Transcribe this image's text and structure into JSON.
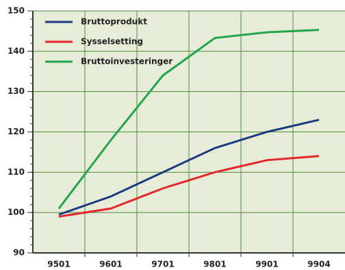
{
  "chart_data": {
    "type": "line",
    "categories": [
      "9501",
      "9601",
      "9701",
      "9801",
      "9901",
      "9904"
    ],
    "series": [
      {
        "name": "Bruttoprodukt",
        "color": "#1b3a7e",
        "values": [
          99.5,
          104,
          110,
          116,
          120,
          123
        ]
      },
      {
        "name": "Sysselsetting",
        "color": "#e5252a",
        "values": [
          99,
          101,
          106,
          110,
          113,
          114
        ]
      },
      {
        "name": "Bruttoinvesteringer",
        "color": "#21a54a",
        "values": [
          101,
          118,
          134,
          143.3,
          144.7,
          145.3
        ]
      }
    ],
    "ylim": [
      90,
      150
    ],
    "yticks": [
      90,
      100,
      110,
      120,
      130,
      140,
      150
    ],
    "grid": true,
    "legend": "upper left"
  }
}
